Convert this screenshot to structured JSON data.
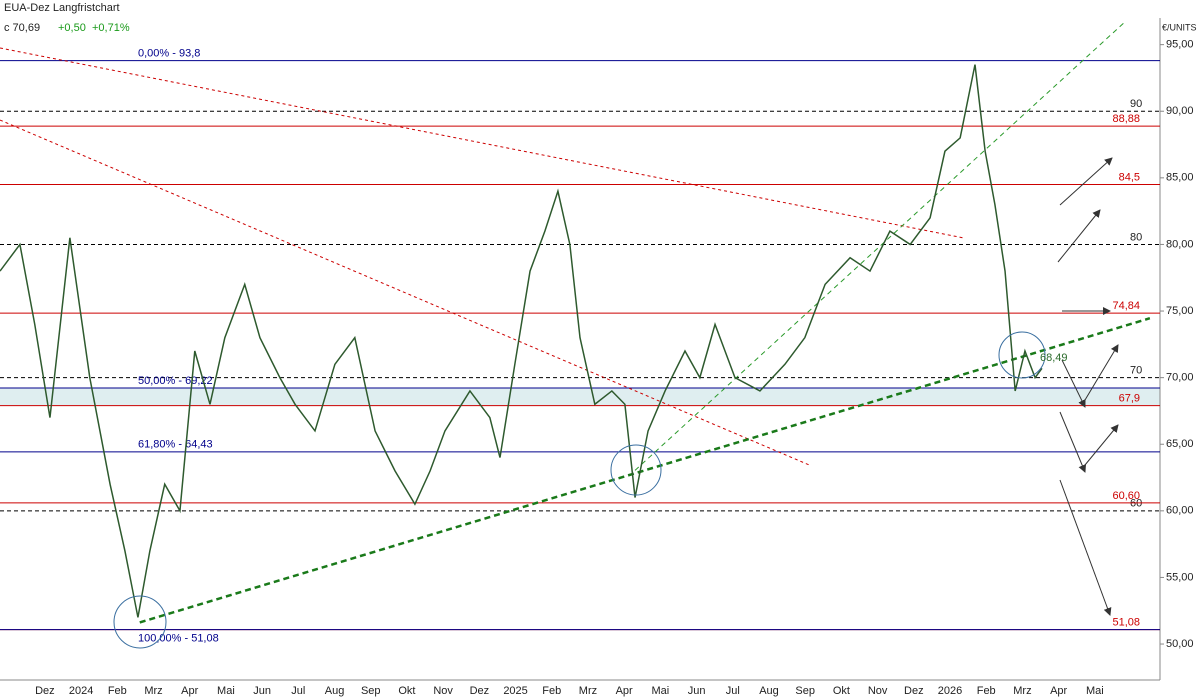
{
  "chart_data": {
    "type": "line",
    "title": "EUA-Dez Langfristchart",
    "subtitle": {
      "close": "c 70,69",
      "change": "+0,50",
      "change_pct": "+0,71%"
    },
    "y_unit": "€/UNITS",
    "annotations": [
      "68,49"
    ],
    "xlim": [
      -1.24,
      30.8
    ],
    "xticks": [
      {
        "value": 0,
        "label": "Dez"
      },
      {
        "value": 1,
        "label": "2024"
      },
      {
        "value": 2,
        "label": "Feb"
      },
      {
        "value": 3,
        "label": "Mrz"
      },
      {
        "value": 4,
        "label": "Apr"
      },
      {
        "value": 5,
        "label": "Mai"
      },
      {
        "value": 6,
        "label": "Jun"
      },
      {
        "value": 7,
        "label": "Jul"
      },
      {
        "value": 8,
        "label": "Aug"
      },
      {
        "value": 9,
        "label": "Sep"
      },
      {
        "value": 10,
        "label": "Okt"
      },
      {
        "value": 11,
        "label": "Nov"
      },
      {
        "value": 12,
        "label": "Dez"
      },
      {
        "value": 13,
        "label": "2025"
      },
      {
        "value": 14,
        "label": "Feb"
      },
      {
        "value": 15,
        "label": "Mrz"
      },
      {
        "value": 16,
        "label": "Apr"
      },
      {
        "value": 17,
        "label": "Mai"
      },
      {
        "value": 18,
        "label": "Jun"
      },
      {
        "value": 19,
        "label": "Jul"
      },
      {
        "value": 20,
        "label": "Aug"
      },
      {
        "value": 21,
        "label": "Sep"
      },
      {
        "value": 22,
        "label": "Okt"
      },
      {
        "value": 23,
        "label": "Nov"
      },
      {
        "value": 24,
        "label": "Dez"
      },
      {
        "value": 25,
        "label": "2026"
      },
      {
        "value": 26,
        "label": "Feb"
      },
      {
        "value": 27,
        "label": "Mrz"
      },
      {
        "value": 28,
        "label": "Apr"
      },
      {
        "value": 29,
        "label": "Mai"
      }
    ],
    "ylim": [
      47.3,
      97.0
    ],
    "yticks": [
      {
        "value": 50,
        "label": "50,00"
      },
      {
        "value": 55,
        "label": "55,00"
      },
      {
        "value": 60,
        "label": "60,00"
      },
      {
        "value": 65,
        "label": "65,00"
      },
      {
        "value": 70,
        "label": "70,00"
      },
      {
        "value": 75,
        "label": "75,00"
      },
      {
        "value": 80,
        "label": "80,00"
      },
      {
        "value": 85,
        "label": "85,00"
      },
      {
        "value": 90,
        "label": "90,00"
      },
      {
        "value": 95,
        "label": "95,00"
      }
    ],
    "series": [
      {
        "color": "#2e5a2e",
        "x": [
          -1.24,
          -0.69,
          -0.28,
          0.14,
          0.69,
          1.24,
          1.8,
          2.21,
          2.57,
          2.9,
          3.31,
          3.73,
          4.14,
          4.56,
          4.97,
          5.52,
          5.94,
          6.49,
          6.91,
          7.46,
          8.01,
          8.56,
          9.12,
          9.67,
          10.22,
          10.64,
          11.05,
          11.74,
          12.29,
          12.57,
          12.98,
          13.4,
          13.81,
          14.17,
          14.5,
          14.78,
          15.19,
          15.66,
          16.02,
          16.3,
          16.66,
          17.13,
          17.68,
          18.09,
          18.51,
          19.06,
          19.75,
          20.44,
          20.99,
          21.55,
          22.24,
          22.79,
          23.34,
          23.9,
          24.45,
          24.86,
          25.28,
          25.69,
          25.97,
          26.24,
          26.52,
          26.8,
          27.07,
          27.35,
          27.54
        ],
        "values": [
          78,
          80,
          74,
          67,
          80.5,
          70,
          62,
          57,
          52,
          57,
          62,
          60,
          72,
          68,
          73,
          77,
          73,
          70,
          68,
          66,
          71,
          73,
          66,
          63,
          60.5,
          63,
          66,
          69,
          67,
          64,
          71,
          78,
          81,
          84,
          80,
          73,
          68,
          69,
          68,
          61,
          66,
          69,
          72,
          70,
          74,
          70,
          69,
          71,
          73,
          77,
          79,
          78,
          81,
          80,
          82,
          87,
          88,
          93.5,
          87,
          83,
          78,
          69,
          72,
          70,
          70.7
        ]
      }
    ],
    "fib_color": "#00008b",
    "fib_levels": [
      {
        "value": 93.8,
        "label": "0,00% - 93,8"
      },
      {
        "value": 69.22,
        "label": "50,00% - 69,22"
      },
      {
        "value": 64.43,
        "label": "61,80% - 64,43"
      },
      {
        "value": 51.08,
        "label": "100,00% - 51,08"
      }
    ],
    "zone": {
      "from": 67.9,
      "to": 69.22,
      "color": "#dfeef0"
    },
    "resistance_color": "#cc0000",
    "resistance_levels": [
      {
        "value": 88.88,
        "label": "88,88"
      },
      {
        "value": 84.5,
        "label": "84,5"
      },
      {
        "value": 74.84,
        "label": "74,84"
      },
      {
        "value": 67.9,
        "label": "67,9"
      },
      {
        "value": 60.6,
        "label": "60,60"
      },
      {
        "value": 51.08,
        "label": "51,08"
      }
    ],
    "round_color": "#000000",
    "round_levels": [
      90,
      80,
      70,
      60
    ],
    "trendlines": [
      {
        "color": "#cc0000",
        "width": 1,
        "dash": "3 3",
        "x": [
          -1.24,
          25.41
        ],
        "y": [
          94.75,
          80.47
        ]
      },
      {
        "color": "#cc0000",
        "width": 1,
        "dash": "3 3",
        "x": [
          -1.24,
          21.13
        ],
        "y": [
          89.34,
          63.42
        ]
      },
      {
        "color": "#1a7a1a",
        "width": 2.5,
        "dash": "6 4",
        "x": [
          2.62,
          30.52
        ],
        "y": [
          51.62,
          74.46
        ]
      },
      {
        "color": "#2a9a2a",
        "width": 1,
        "dash": "5 4",
        "x": [
          16.3,
          29.83
        ],
        "y": [
          63.04,
          96.7
        ]
      }
    ]
  }
}
